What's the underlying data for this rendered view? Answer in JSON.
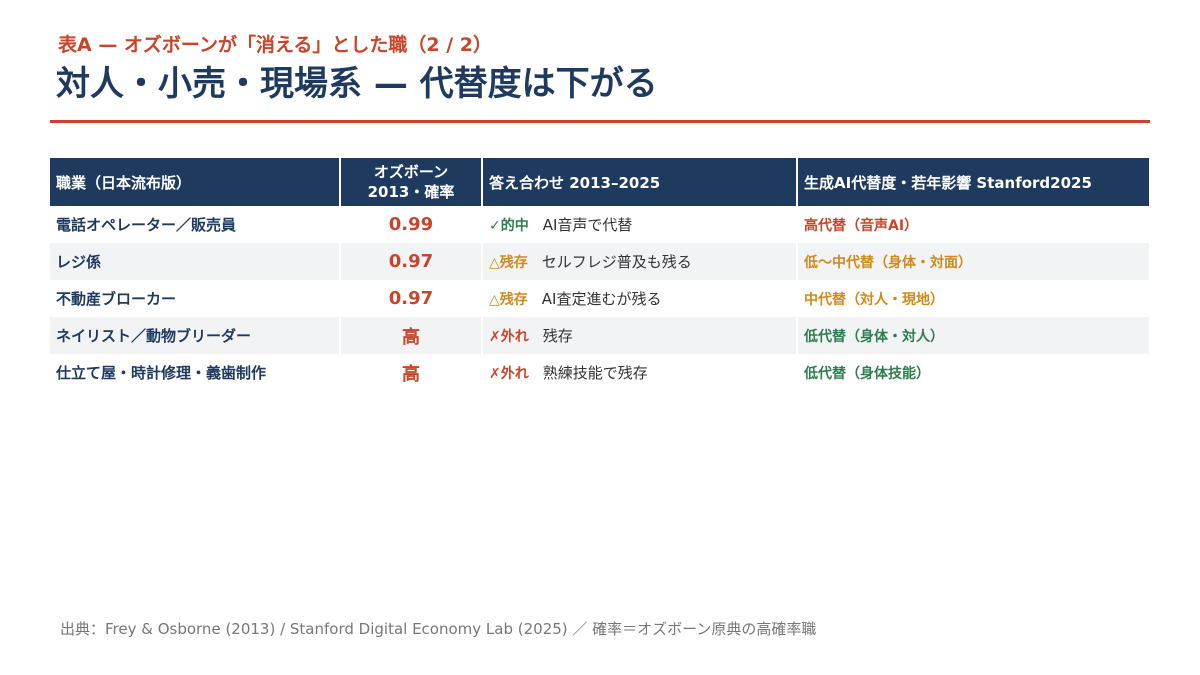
{
  "header": {
    "kicker": "表A — オズボーンが「消える」とした職（2 / 2）",
    "title": "対人・小売・現場系 — 代替度は下がる"
  },
  "table": {
    "columns": [
      "職業（日本流布版）",
      [
        "オズボーン",
        "2013・確率"
      ],
      "答え合わせ 2013–2025",
      "生成AI代替度・若年影響 Stanford2025"
    ],
    "rows": [
      [
        "電話オペレーター／販売員",
        "0.99",
        "✓的中",
        "AI音声で代替",
        "高代替（音声AI）"
      ],
      [
        "レジ係",
        "0.97",
        "△残存",
        "セルフレジ普及も残る",
        "低〜中代替（身体・対面）"
      ],
      [
        "不動産ブローカー",
        "0.97",
        "△残存",
        "AI査定進むが残る",
        "中代替（対人・現地）"
      ],
      [
        "ネイリスト／動物ブリーダー",
        "高",
        "✗外れ",
        "残存",
        "低代替（身体・対人）"
      ],
      [
        "仕立て屋・時計修理・義歯制作",
        "高",
        "✗外れ",
        "熟練技能で残存",
        "低代替（身体技能）"
      ]
    ]
  },
  "footer": "出典：Frey & Osborne (2013) / Stanford Digital Economy Lab (2025) ／ 確率＝オズボーン原典の高確率職"
}
